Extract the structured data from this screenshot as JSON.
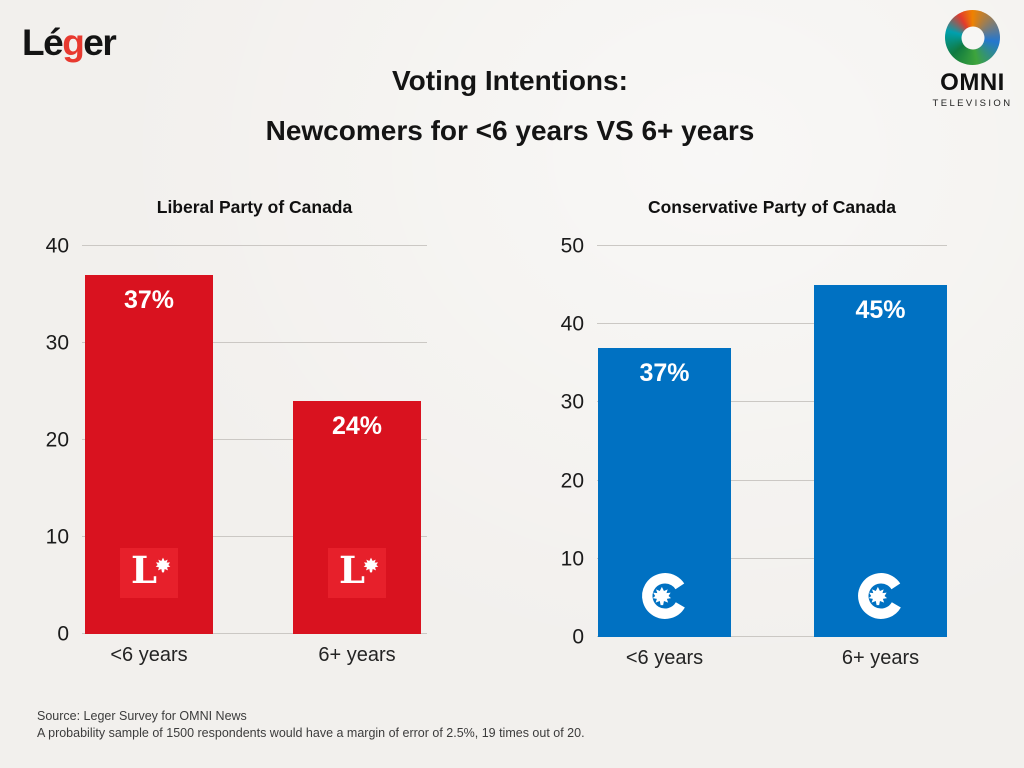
{
  "header": {
    "leger_logo": {
      "black_prefix": "Lé",
      "red_letter": "g",
      "black_suffix": "er"
    },
    "title_line1": "Voting Intentions:",
    "title_line2": "Newcomers for <6 years VS 6+ years",
    "omni_logo": {
      "name": "OMNI",
      "subtitle": "TELEVISION",
      "swirl_colors": [
        "#e23a2d",
        "#ef8200",
        "#2477cf",
        "#3ea43c",
        "#107a40",
        "#00a0ae"
      ]
    }
  },
  "chart_data": [
    {
      "type": "bar",
      "title": "Liberal Party of Canada",
      "categories": [
        "<6 years",
        "6+ years"
      ],
      "values": [
        37,
        24
      ],
      "value_labels": [
        "37%",
        "24%"
      ],
      "ylim": [
        0,
        40
      ],
      "yticks": [
        0,
        10,
        20,
        30,
        40
      ],
      "bar_color": "#d9121f",
      "logo_square_color": "#e7202b",
      "grid": true,
      "legend_position": "none"
    },
    {
      "type": "bar",
      "title": "Conservative Party of Canada",
      "categories": [
        "<6 years",
        "6+ years"
      ],
      "values": [
        37,
        45
      ],
      "value_labels": [
        "37%",
        "45%"
      ],
      "ylim": [
        0,
        50
      ],
      "yticks": [
        0,
        10,
        20,
        30,
        40,
        50
      ],
      "bar_color": "#0071c2",
      "grid": true,
      "legend_position": "none"
    }
  ],
  "footer": {
    "source_line": "Source: Leger Survey for OMNI News",
    "note_line": "A probability sample of 1500 respondents would have a margin of error of 2.5%, 19 times out of 20."
  }
}
